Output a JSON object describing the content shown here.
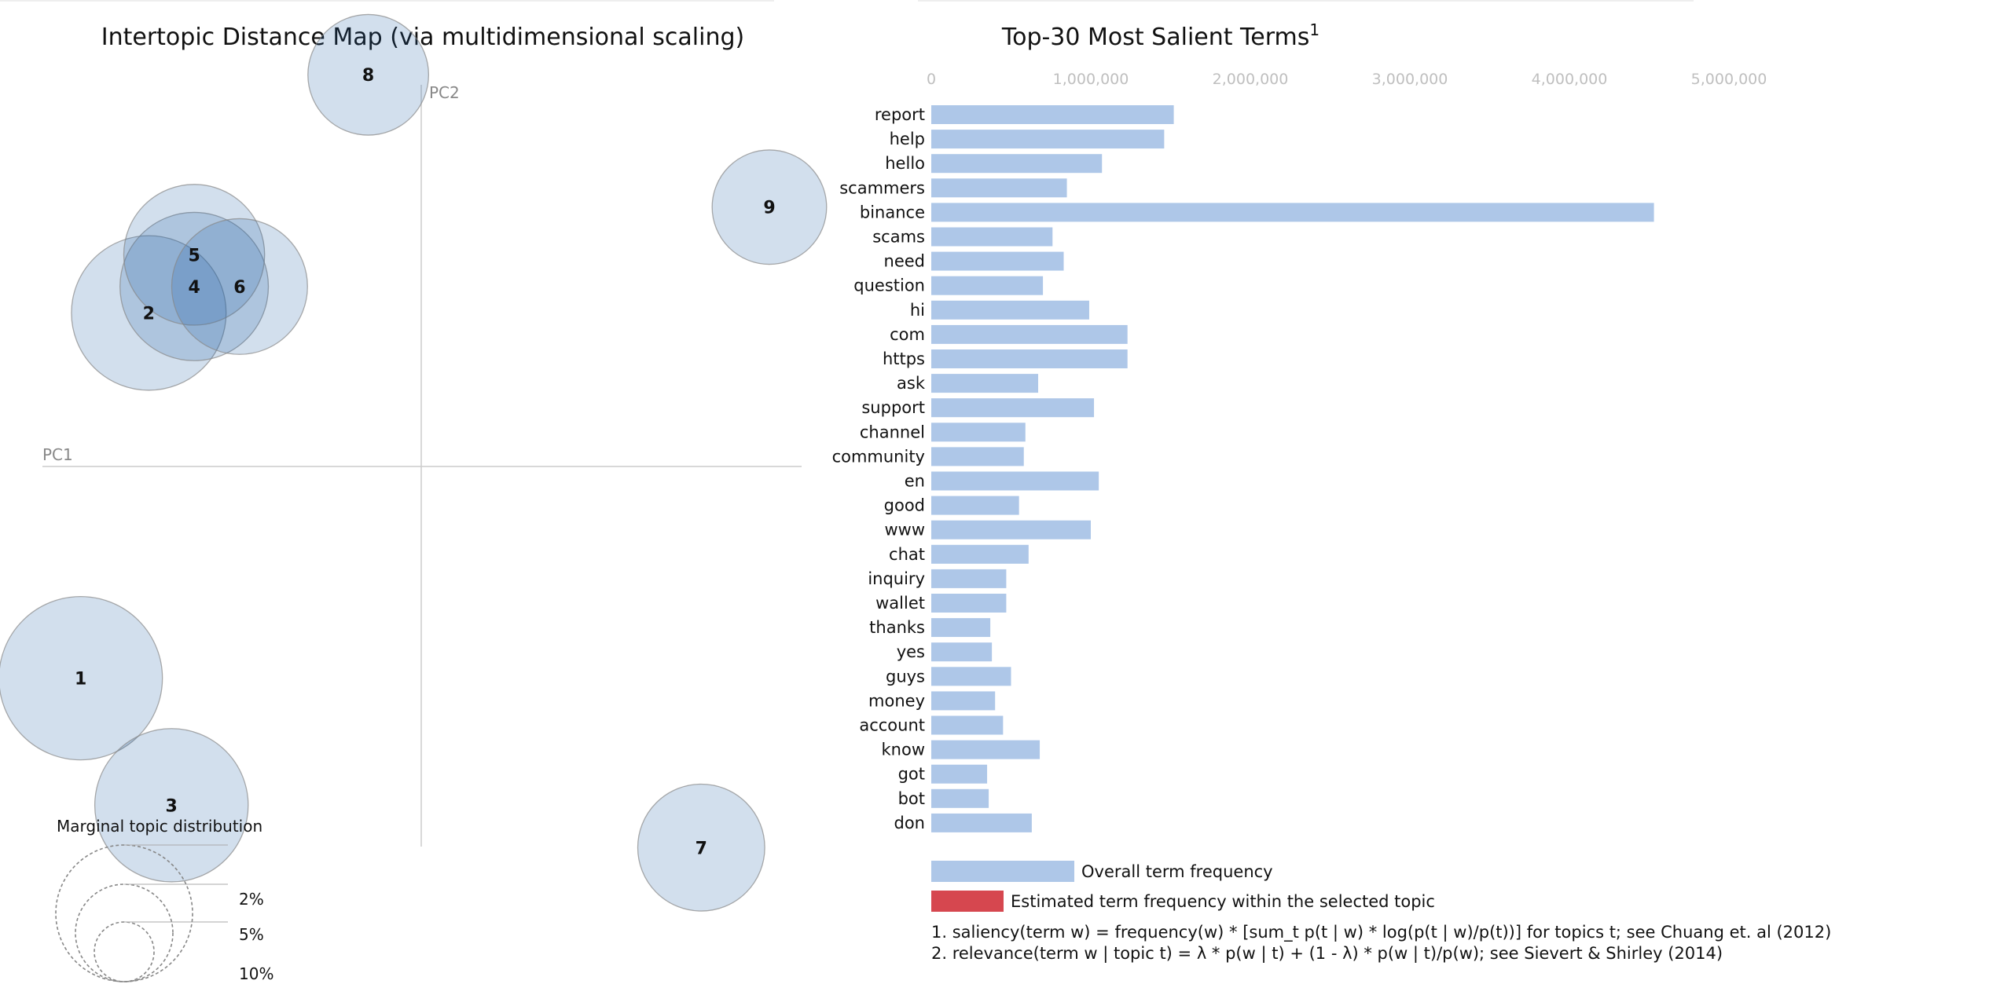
{
  "left_title": "Intertopic Distance Map (via multidimensional scaling)",
  "right_title": "Top-30 Most Salient Terms",
  "right_title_sup": "1",
  "pc1_label": "PC1",
  "pc2_label": "PC2",
  "marginal": {
    "title": "Marginal topic distribution",
    "levels": [
      "2%",
      "5%",
      "10%"
    ]
  },
  "legend": {
    "overall": "Overall term frequency",
    "topic": "Estimated term frequency within the selected topic"
  },
  "footnotes": [
    "1. saliency(term w) = frequency(w) * [sum_t p(t | w) * log(p(t | w)/p(t))] for topics t; see Chuang et. al (2012)",
    "2. relevance(term w | topic t) = λ * p(w | t) + (1 - λ) * p(w | t)/p(w); see Sievert & Shirley (2014)"
  ],
  "colors": {
    "bar": "#aec7e8",
    "topic_bar": "#d6474f",
    "circle_fill": "#1f5fa6",
    "circle_stroke": "#888888",
    "axis": "#cccccc"
  },
  "chart_data": [
    {
      "type": "scatter",
      "title": "Intertopic Distance Map (via multidimensional scaling)",
      "xlabel": "PC1",
      "ylabel": "PC2",
      "note": "bubble area proportional to marginal topic distribution",
      "topics": [
        {
          "id": "1",
          "x": -0.45,
          "y": -0.4,
          "r": 1.3
        },
        {
          "id": "2",
          "x": -0.36,
          "y": 0.29,
          "r": 1.23
        },
        {
          "id": "3",
          "x": -0.33,
          "y": -0.64,
          "r": 1.22
        },
        {
          "id": "4",
          "x": -0.3,
          "y": 0.34,
          "r": 1.18
        },
        {
          "id": "5",
          "x": -0.3,
          "y": 0.4,
          "r": 1.12
        },
        {
          "id": "6",
          "x": -0.24,
          "y": 0.34,
          "r": 1.08
        },
        {
          "id": "7",
          "x": 0.37,
          "y": -0.72,
          "r": 1.01
        },
        {
          "id": "8",
          "x": -0.07,
          "y": 0.74,
          "r": 0.96
        },
        {
          "id": "9",
          "x": 0.46,
          "y": 0.49,
          "r": 0.91
        }
      ]
    },
    {
      "type": "bar",
      "orientation": "horizontal",
      "title": "Top-30 Most Salient Terms",
      "xlim": [
        0,
        5000000
      ],
      "xticks": [
        "0",
        "1,000,000",
        "2,000,000",
        "3,000,000",
        "4,000,000",
        "5,000,000"
      ],
      "xtick_values": [
        0,
        1000000,
        2000000,
        3000000,
        4000000,
        5000000
      ],
      "categories": [
        "report",
        "help",
        "hello",
        "scammers",
        "binance",
        "scams",
        "need",
        "question",
        "hi",
        "com",
        "https",
        "ask",
        "support",
        "channel",
        "community",
        "en",
        "good",
        "www",
        "chat",
        "inquiry",
        "wallet",
        "thanks",
        "yes",
        "guys",
        "money",
        "account",
        "know",
        "got",
        "bot",
        "don"
      ],
      "values": [
        1520000,
        1460000,
        1070000,
        850000,
        4530000,
        760000,
        830000,
        700000,
        990000,
        1230000,
        1230000,
        670000,
        1020000,
        590000,
        580000,
        1050000,
        550000,
        1000000,
        610000,
        470000,
        470000,
        370000,
        380000,
        500000,
        400000,
        450000,
        680000,
        350000,
        360000,
        630000
      ]
    }
  ]
}
